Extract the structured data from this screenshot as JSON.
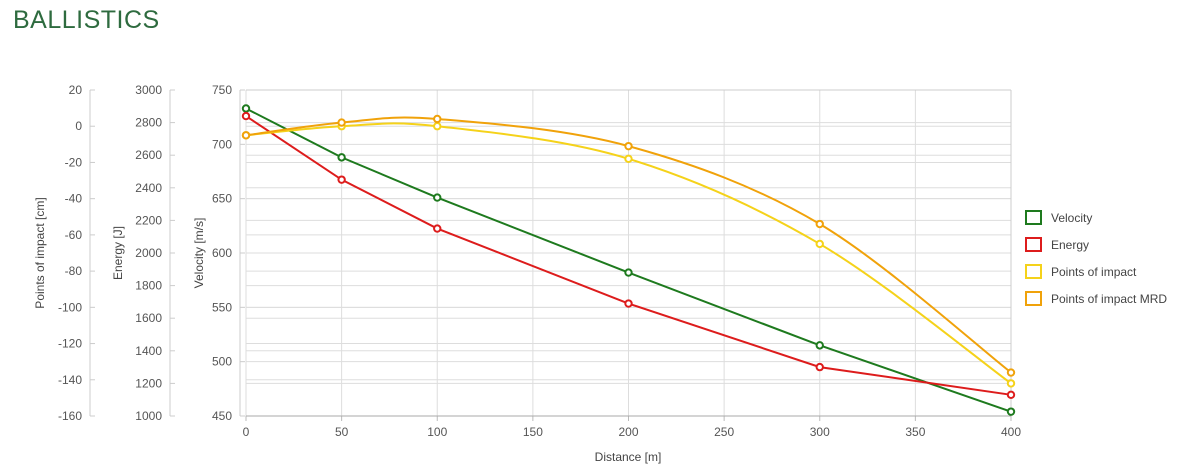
{
  "page": {
    "title": "BALLISTICS"
  },
  "chart_data": {
    "type": "line",
    "x": [
      0,
      50,
      100,
      200,
      300,
      400
    ],
    "xlabel": "Distance [m]",
    "xlim": [
      0,
      400
    ],
    "xticks": [
      0,
      50,
      100,
      150,
      200,
      250,
      300,
      350,
      400
    ],
    "axes": {
      "velocity": {
        "label": "Velocity [m/s]",
        "lim": [
          450,
          750
        ],
        "ticks": [
          450,
          500,
          550,
          600,
          650,
          700,
          750
        ]
      },
      "energy": {
        "label": "Energy [J]",
        "lim": [
          1000,
          3000
        ],
        "ticks": [
          1000,
          1200,
          1400,
          1600,
          1800,
          2000,
          2200,
          2400,
          2600,
          2800,
          3000
        ]
      },
      "impact": {
        "label": "Points of impact [cm]",
        "lim": [
          -160,
          20
        ],
        "ticks": [
          -160,
          -140,
          -120,
          -100,
          -80,
          -60,
          -40,
          -20,
          0,
          20
        ]
      }
    },
    "series": [
      {
        "name": "Velocity",
        "axis": "velocity",
        "color": "#1e7a1e",
        "smooth": false,
        "values": [
          733,
          688,
          651,
          582,
          515,
          454
        ]
      },
      {
        "name": "Energy",
        "axis": "energy",
        "color": "#dd1c1c",
        "smooth": false,
        "values": [
          2840,
          2450,
          2150,
          1690,
          1300,
          1130
        ]
      },
      {
        "name": "Points of impact",
        "axis": "impact",
        "color": "#f5d21a",
        "smooth": true,
        "values": [
          -5,
          0,
          0,
          -18,
          -65,
          -142
        ]
      },
      {
        "name": "Points of impact MRD",
        "axis": "impact",
        "color": "#f0a20a",
        "smooth": true,
        "values": [
          -5,
          2,
          4,
          -11,
          -54,
          -136
        ]
      }
    ],
    "grid": true,
    "legend_position": "right"
  }
}
